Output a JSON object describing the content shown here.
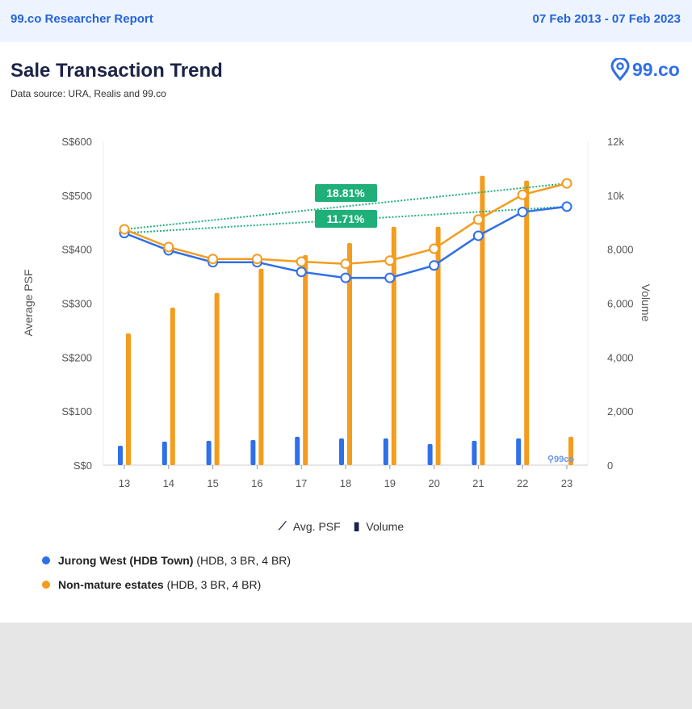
{
  "header": {
    "report_title": "99.co Researcher Report",
    "date_range": "07 Feb 2013 - 07 Feb 2023"
  },
  "title": "Sale Transaction Trend",
  "subtitle": "Data source: URA, Realis and 99.co",
  "logo_text": "99.co",
  "legend_types": {
    "line": "Avg. PSF",
    "bar": "Volume"
  },
  "legend": [
    {
      "name": "Jurong West (HDB Town)",
      "detail": "(HDB, 3 BR, 4 BR)",
      "color": "#2f6fe8"
    },
    {
      "name": "Non-mature estates",
      "detail": "(HDB, 3 BR, 4 BR)",
      "color": "#f39c1e"
    }
  ],
  "chart_data": {
    "type": "bar+line",
    "categories": [
      "13",
      "14",
      "15",
      "16",
      "17",
      "18",
      "19",
      "20",
      "21",
      "22",
      "23"
    ],
    "ylabel": "Average PSF",
    "y2label": "Volume",
    "ylim": [
      0,
      600
    ],
    "y2lim": [
      0,
      12000
    ],
    "y_ticks": [
      "S$0",
      "S$100",
      "S$200",
      "S$300",
      "S$400",
      "S$500",
      "S$600"
    ],
    "y2_ticks": [
      "0",
      "2,000",
      "4,000",
      "6,000",
      "8,000",
      "10k",
      "12k"
    ],
    "series": [
      {
        "name": "Jurong West (HDB Town)",
        "color": "#2f6fe8",
        "psf": [
          430,
          398,
          376,
          376,
          358,
          347,
          347,
          370,
          425,
          469,
          479
        ],
        "volume": [
          720,
          870,
          900,
          930,
          1050,
          990,
          990,
          780,
          900,
          990,
          null
        ]
      },
      {
        "name": "Non-mature estates",
        "color": "#f39c1e",
        "psf": [
          437,
          404,
          382,
          382,
          377,
          373,
          379,
          401,
          455,
          501,
          522
        ],
        "volume": [
          4880,
          5840,
          6380,
          7280,
          7780,
          8230,
          8830,
          8830,
          10720,
          10540,
          1050
        ]
      }
    ],
    "annotations": [
      {
        "label": "18.81%",
        "series": "Non-mature estates"
      },
      {
        "label": "11.71%",
        "series": "Jurong West (HDB Town)"
      }
    ],
    "trend_color": "#1fb07a"
  }
}
